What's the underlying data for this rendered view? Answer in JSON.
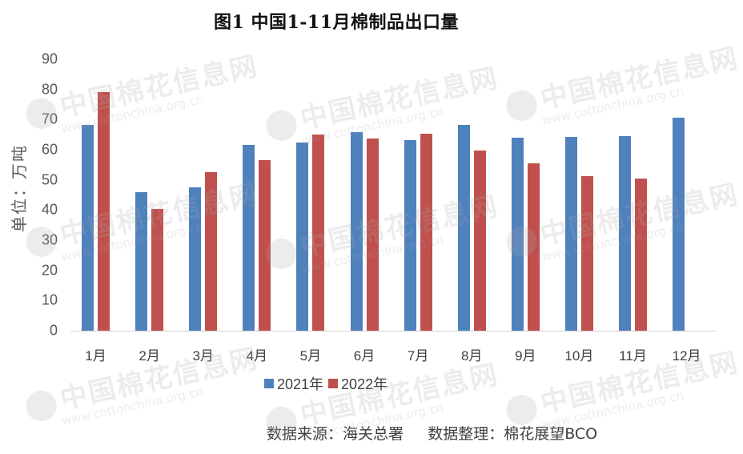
{
  "chart_data": {
    "type": "bar",
    "title": "图1  中国1-11月棉制品出口量",
    "xlabel": "",
    "ylabel": "单位：万吨",
    "ylim": [
      0,
      90
    ],
    "yticks": [
      0,
      10,
      20,
      30,
      40,
      50,
      60,
      70,
      80,
      90
    ],
    "grid": false,
    "legend_position": "bottom",
    "categories": [
      "1月",
      "2月",
      "3月",
      "4月",
      "5月",
      "6月",
      "7月",
      "8月",
      "9月",
      "10月",
      "11月",
      "12月"
    ],
    "series": [
      {
        "name": "2021年",
        "color": "#4F81BD",
        "values": [
          68.2,
          45.9,
          47.5,
          61.7,
          62.3,
          65.8,
          63.2,
          68.2,
          64.0,
          64.3,
          64.5,
          70.7
        ]
      },
      {
        "name": "2022年",
        "color": "#C0504D",
        "values": [
          79.0,
          40.3,
          52.6,
          56.5,
          65.0,
          63.6,
          65.2,
          59.8,
          55.5,
          51.3,
          50.4,
          null
        ]
      }
    ],
    "source_note": "数据来源：海关总署     数据整理：棉花展望BCO"
  },
  "title": "图1  中国1-11月棉制品出口量",
  "ylabel": "单位：万吨",
  "legend": {
    "series_2021": "2021年",
    "series_2022": "2022年"
  },
  "source": "数据来源：海关总署     数据整理：棉花展望BCO",
  "watermark": {
    "cn": "中国棉花信息网",
    "en": "www.cottonchina.org.cn"
  }
}
